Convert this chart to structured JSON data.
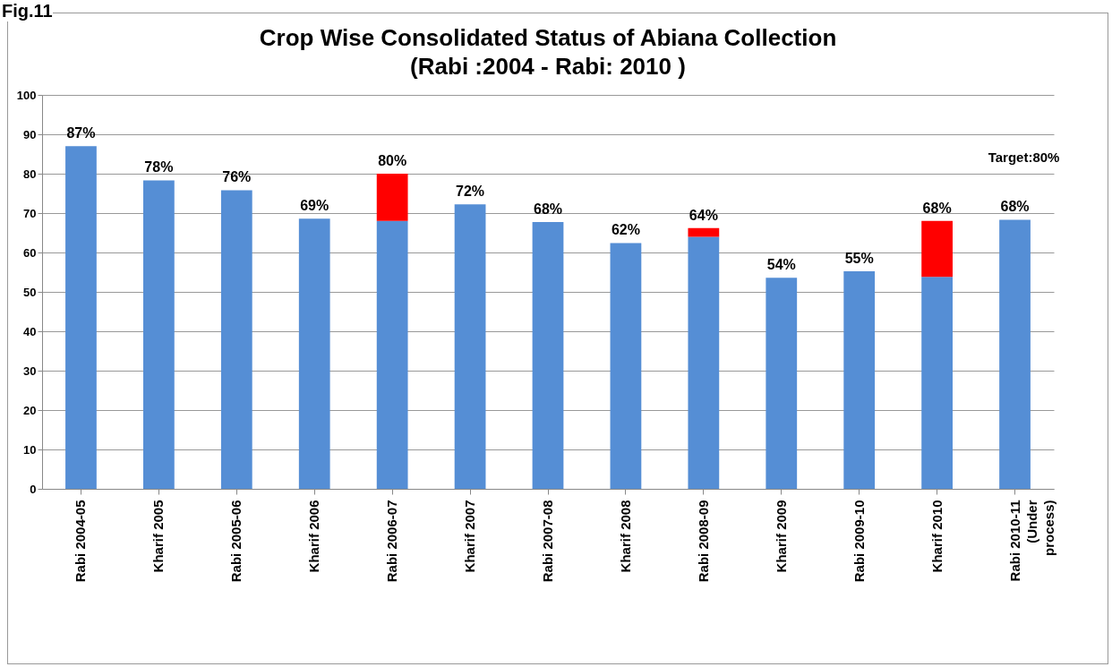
{
  "chart_data": {
    "type": "bar",
    "title": "Crop Wise  Consolidated Status of Abiana Collection",
    "subtitle": "(Rabi :2004  - Rabi: 2010 )",
    "categories": [
      "Rabi 2004-05",
      "Kharif 2005",
      "Rabi 2005-06",
      "Kharif 2006",
      "Rabi 2006-07",
      "Kharif 2007",
      "Rabi 2007-08",
      "Kharif 2008",
      "Rabi 2008-09",
      "Kharif 2009",
      "Rabi 2009-10",
      "Kharif 2010",
      "Rabi 2010-11\n(Under\nprocess)"
    ],
    "series": [
      {
        "color": "#558ed5",
        "values": [
          87,
          78.3,
          75.8,
          68.6,
          68,
          72.2,
          67.7,
          62.4,
          64,
          53.6,
          55.2,
          53.8,
          68.3
        ],
        "value_labels": [
          null,
          null,
          null,
          null,
          null,
          null,
          null,
          null,
          "64%",
          null,
          null,
          null,
          null
        ]
      },
      {
        "color": "#ff0000",
        "values": [
          null,
          null,
          null,
          null,
          12,
          null,
          null,
          null,
          2.2,
          null,
          null,
          14.2,
          null
        ],
        "value_labels": [
          null,
          null,
          null,
          null,
          null,
          null,
          null,
          null,
          null,
          null,
          null,
          null,
          null
        ]
      }
    ],
    "totals": [
      "87%",
      "78%",
      "76%",
      "69%",
      "80%",
      "72%",
      "68%",
      "62%",
      null,
      "54%",
      "55%",
      "68%",
      "68%"
    ],
    "stacked": true,
    "ylim": [
      0,
      100
    ],
    "yticks": [
      0,
      10,
      20,
      30,
      40,
      50,
      60,
      70,
      80,
      90,
      100
    ],
    "grid": "y",
    "legend": false,
    "annotations": [
      "Fig.11",
      "Target:80%"
    ]
  }
}
